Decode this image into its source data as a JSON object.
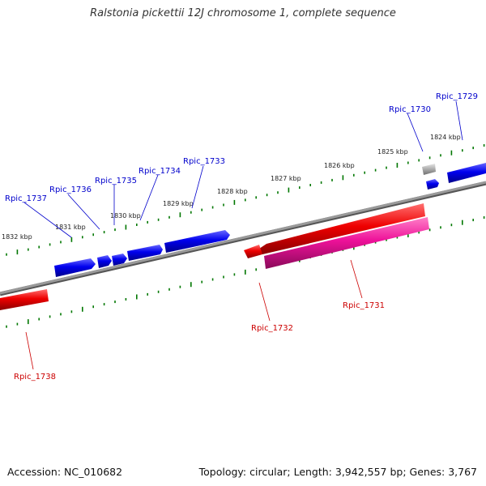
{
  "title": "Ralstonia pickettii 12J chromosome 1, complete sequence",
  "footer": {
    "accession": "Accession: NC_010682",
    "summary": "Topology: circular; Length: 3,942,557 bp; Genes: 3,767"
  },
  "colors": {
    "forward_gene": "#0000ee",
    "reverse_gene": "#ee0000",
    "pink_gene": "#ee1199",
    "pseudo_gene": "#aaaaaa",
    "forward_label": "#0000cc",
    "reverse_label": "#cc0000",
    "backbone": "#888888",
    "ticks": "#007700",
    "scale_text": "#222222"
  },
  "scale_labels": [
    "1824 kbp",
    "1825 kbp",
    "1826 kbp",
    "1827 kbp",
    "1828 kbp",
    "1829 kbp",
    "1830 kbp",
    "1831 kbp",
    "1832 kbp"
  ],
  "genes": [
    {
      "label": "Rpic_1729",
      "strand": "forward"
    },
    {
      "label": "Rpic_1730",
      "strand": "forward"
    },
    {
      "label": "Rpic_1731",
      "strand": "reverse"
    },
    {
      "label": "Rpic_1732",
      "strand": "reverse"
    },
    {
      "label": "Rpic_1733",
      "strand": "forward"
    },
    {
      "label": "Rpic_1734",
      "strand": "forward"
    },
    {
      "label": "Rpic_1735",
      "strand": "forward"
    },
    {
      "label": "Rpic_1736",
      "strand": "forward"
    },
    {
      "label": "Rpic_1737",
      "strand": "forward"
    },
    {
      "label": "Rpic_1738",
      "strand": "reverse"
    }
  ]
}
